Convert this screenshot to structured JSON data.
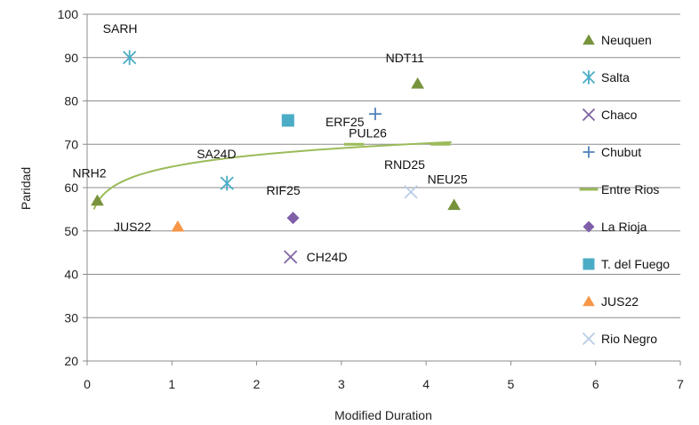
{
  "chart_data": {
    "type": "scatter",
    "xlabel": "Modified Duration",
    "ylabel": "Paridad",
    "xlim": [
      0,
      7
    ],
    "ylim": [
      20,
      100
    ],
    "x_ticks": [
      0,
      1,
      2,
      3,
      4,
      5,
      6,
      7
    ],
    "y_ticks": [
      20,
      30,
      40,
      50,
      60,
      70,
      80,
      90,
      100
    ],
    "grid": "horizontal",
    "legend_position": "right",
    "series": [
      {
        "name": "Neuquen",
        "marker": "triangle",
        "color": "#77933C",
        "points": [
          {
            "x": 0.12,
            "y": 57,
            "label": "NRH2"
          },
          {
            "x": 3.9,
            "y": 84,
            "label": "NDT11"
          },
          {
            "x": 4.33,
            "y": 56,
            "label": "NEU25"
          }
        ]
      },
      {
        "name": "Salta",
        "marker": "asterisk",
        "color": "#4BACC6",
        "points": [
          {
            "x": 0.5,
            "y": 90,
            "label": "SARH"
          },
          {
            "x": 1.65,
            "y": 61,
            "label": "SA24D"
          }
        ]
      },
      {
        "name": "Chaco",
        "marker": "x",
        "color": "#8064A2",
        "points": [
          {
            "x": 2.4,
            "y": 44,
            "label": "CH24D"
          }
        ]
      },
      {
        "name": "Chubut",
        "marker": "plus",
        "color": "#4F81BD",
        "points": [
          {
            "x": 3.4,
            "y": 77,
            "label": "ERF25"
          }
        ]
      },
      {
        "name": "Entre Rios",
        "marker": "dash",
        "color": "#9BBB59",
        "points": [
          {
            "x": 3.15,
            "y": 70,
            "label": "PUL26"
          },
          {
            "x": 4.17,
            "y": 70,
            "label": ""
          }
        ]
      },
      {
        "name": "La Rioja",
        "marker": "diamond",
        "color": "#7F5FA8",
        "points": [
          {
            "x": 2.43,
            "y": 53,
            "label": "RIF25"
          }
        ]
      },
      {
        "name": "T. del Fuego",
        "marker": "square",
        "color": "#4BACC6",
        "points": [
          {
            "x": 2.37,
            "y": 75.5,
            "label": ""
          }
        ]
      },
      {
        "name": "JUS22",
        "marker": "triangle",
        "color": "#F79646",
        "points": [
          {
            "x": 1.07,
            "y": 51,
            "label": "JUS22"
          }
        ]
      },
      {
        "name": "Rio Negro",
        "marker": "x",
        "color": "#B9CDE5",
        "points": [
          {
            "x": 3.82,
            "y": 59,
            "label": "RND25"
          }
        ]
      }
    ],
    "trendline": {
      "type": "logarithmic",
      "color": "#9BBB59",
      "x_start": 0.08,
      "x_end": 4.3
    }
  }
}
